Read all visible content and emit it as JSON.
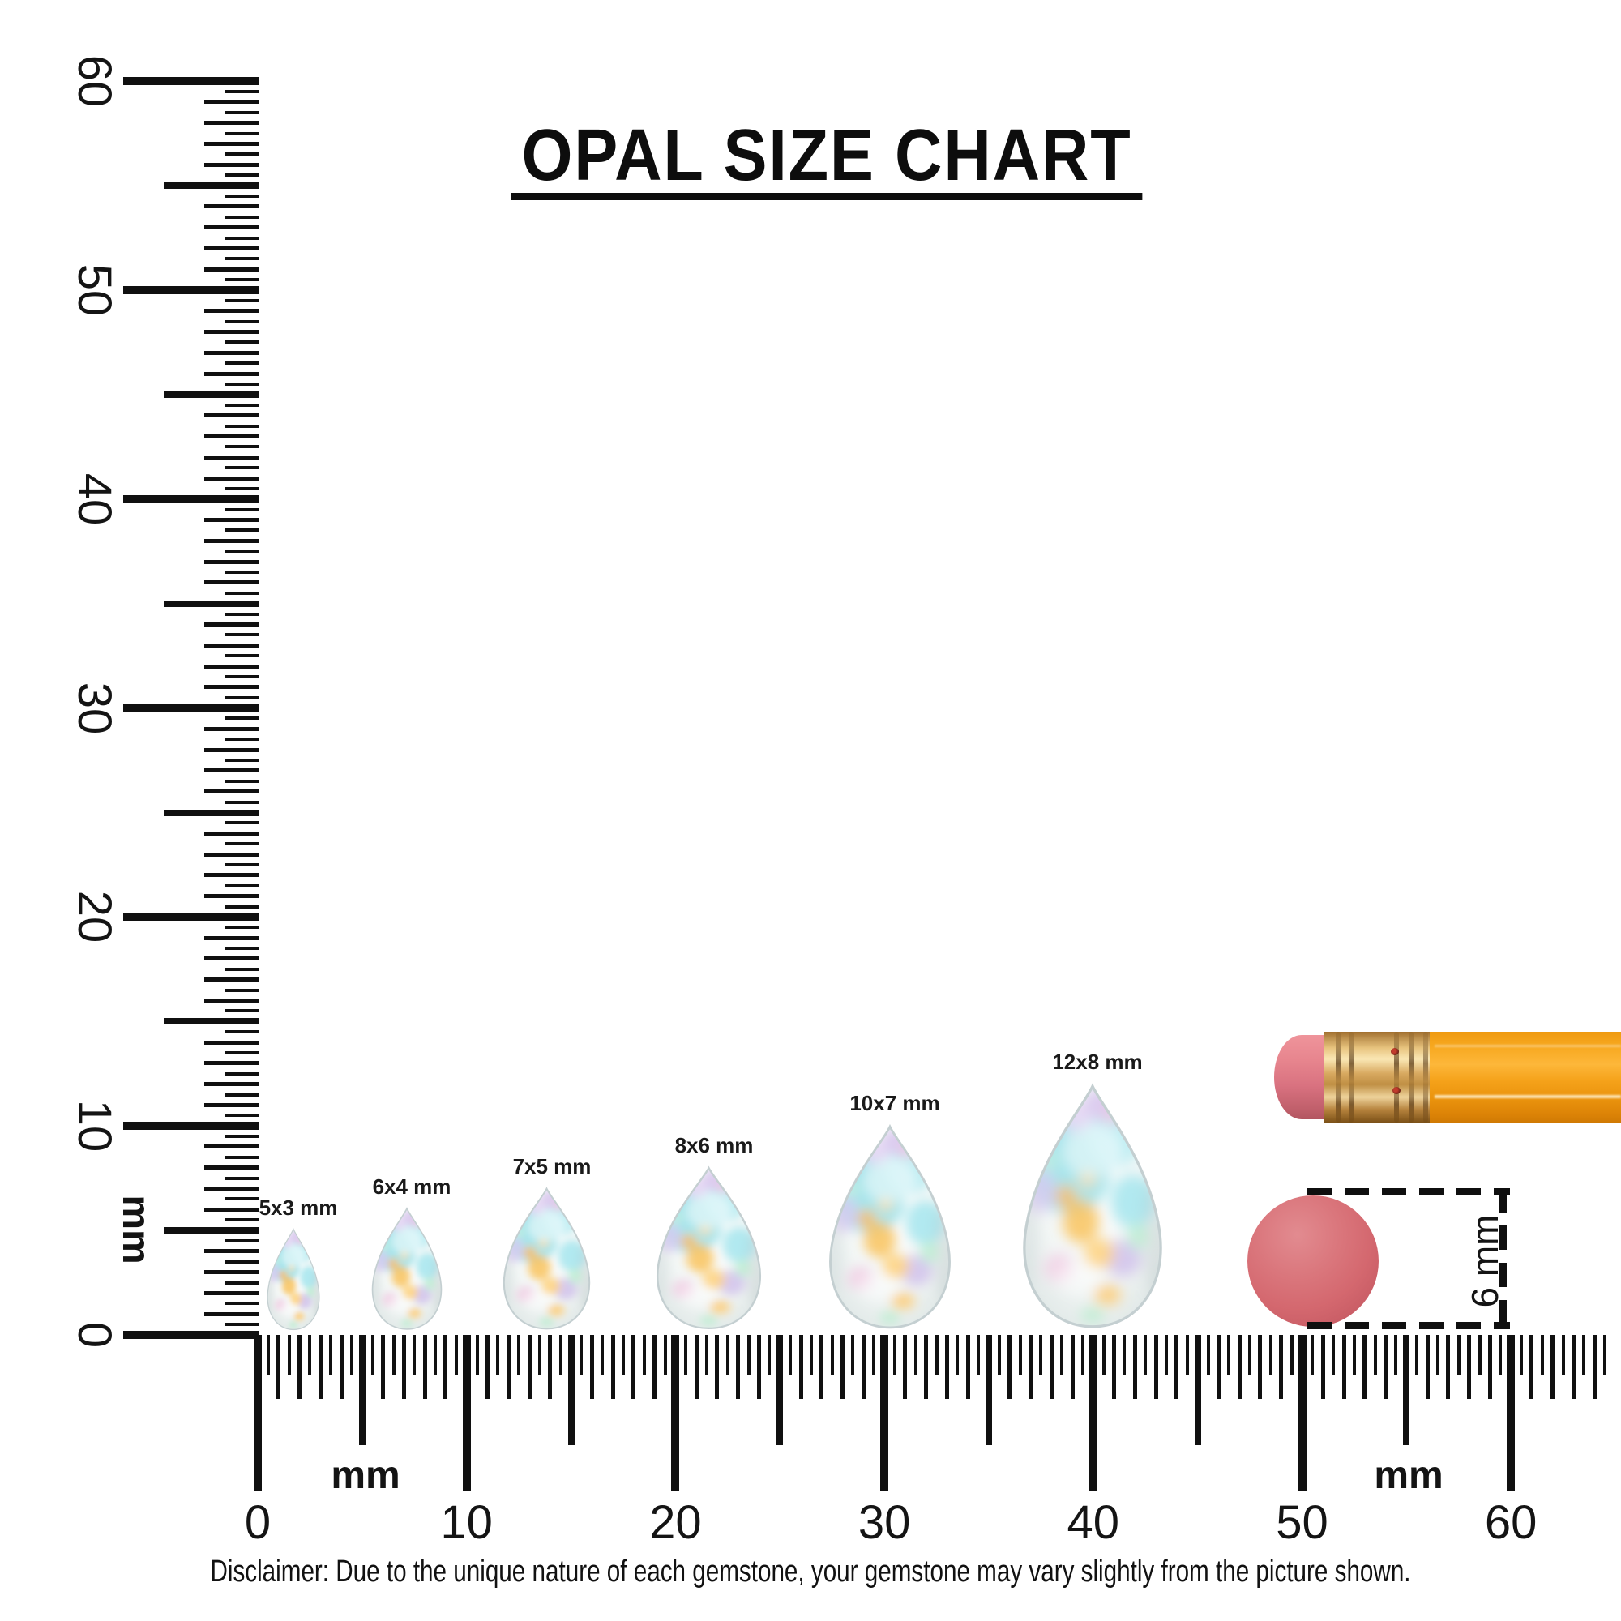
{
  "title": "OPAL SIZE CHART",
  "rulers": {
    "unit": "mm",
    "left": {
      "labels": [
        "60",
        "50",
        "40",
        "30",
        "20",
        "10",
        "0"
      ],
      "label_values_mm": [
        60,
        50,
        40,
        30,
        20,
        10,
        0
      ],
      "unit_label": "mm",
      "range_mm": [
        0,
        60
      ]
    },
    "bottom": {
      "labels": [
        "0",
        "10",
        "20",
        "30",
        "40",
        "50",
        "60"
      ],
      "label_values_mm": [
        0,
        10,
        20,
        30,
        40,
        50,
        60
      ],
      "unit_labels": [
        "mm",
        "mm"
      ],
      "range_mm": [
        0,
        64.5
      ]
    }
  },
  "opals": [
    {
      "label": "5x3 mm",
      "length_mm": 5,
      "width_mm": 3
    },
    {
      "label": "6x4 mm",
      "length_mm": 6,
      "width_mm": 4
    },
    {
      "label": "7x5 mm",
      "length_mm": 7,
      "width_mm": 5
    },
    {
      "label": "8x6 mm",
      "length_mm": 8,
      "width_mm": 6
    },
    {
      "label": "10x7 mm",
      "length_mm": 10,
      "width_mm": 7
    },
    {
      "label": "12x8 mm",
      "length_mm": 12,
      "width_mm": 8
    }
  ],
  "reference": {
    "circle_label": "6 mm",
    "circle_diameter_mm": 6
  },
  "disclaimer": "Disclaimer: Due to the unique nature of each gemstone, your gemstone may vary slightly from the picture shown.",
  "colors": {
    "ink": "#101010",
    "pencil_body_orange": "#f5a21a",
    "eraser_pink": "#e07784",
    "ferrule_brass": "#d8a960",
    "reference_circle_red": "#d4686f",
    "opal_cyan": "#9de2ea",
    "opal_lavender": "#d6c2ee",
    "opal_gold": "#f9c35e"
  }
}
